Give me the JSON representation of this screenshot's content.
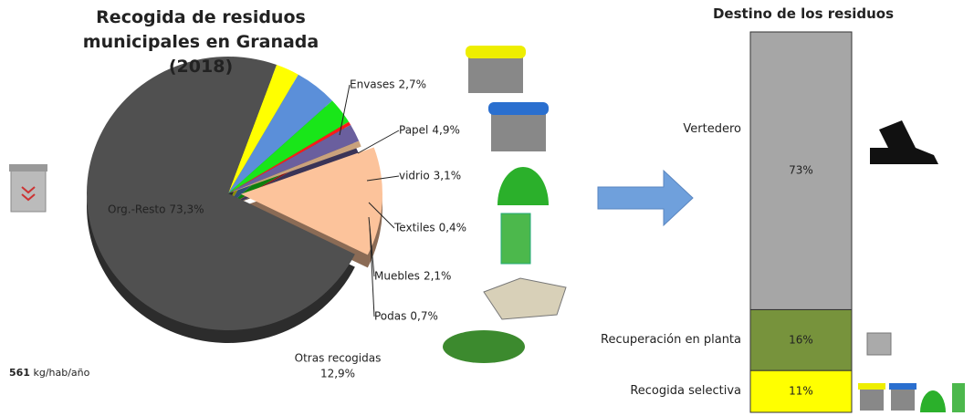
{
  "chart_data": [
    {
      "type": "pie",
      "title": "Recogida de residuos municipales en Granada (2018)",
      "categories": [
        "Envases",
        "Papel",
        "vidrio",
        "Textiles",
        "Muebles",
        "Podas",
        "Otras recogidas",
        "Org.-Resto"
      ],
      "values": [
        2.7,
        4.9,
        3.1,
        0.4,
        2.1,
        0.7,
        12.9,
        73.3
      ],
      "value_labels": [
        "2,7%",
        "4,9%",
        "3,1%",
        "0,4%",
        "2,1%",
        "0,7%",
        "12,9%",
        "73,3%"
      ],
      "colors": [
        "#ffff00",
        "#5b8fd9",
        "#19e619",
        "#ff1a1a",
        "#6a5f9e",
        "#c9a27c",
        "#fcc39b",
        "#505050"
      ],
      "exploded": "Otras recogidas",
      "per_capita": 561,
      "per_capita_unit": "kg/hab/año"
    },
    {
      "type": "stacked-bar",
      "title": "Destino de los residuos",
      "categories": [
        "Recogida selectiva",
        "Recuperación en planta",
        "Vertedero"
      ],
      "values": [
        11,
        16,
        73
      ],
      "value_labels": [
        "11%",
        "16%",
        "73%"
      ],
      "colors": [
        "#ffff00",
        "#77933c",
        "#a6a6a6"
      ]
    }
  ]
}
